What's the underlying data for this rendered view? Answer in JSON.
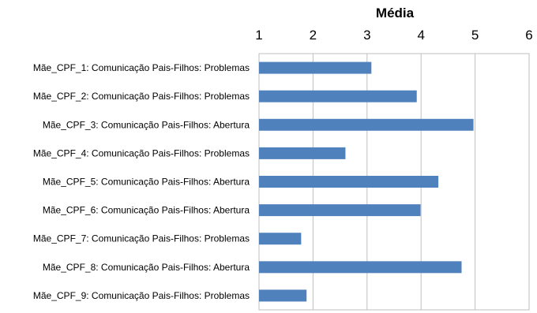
{
  "chart_data": {
    "type": "bar",
    "orientation": "horizontal",
    "title": "Média",
    "xlabel": "Média",
    "xaxis_position": "top",
    "xlim": [
      1,
      6
    ],
    "xticks": [
      "1",
      "2",
      "3",
      "4",
      "5",
      "6"
    ],
    "grid": true,
    "bar_color": "#4F81BD",
    "categories": [
      "Mãe_CPF_1: Comunicação Pais-Filhos: Problemas",
      "Mãe_CPF_2: Comunicação Pais-Filhos: Problemas",
      "Mãe_CPF_3: Comunicação Pais-Filhos: Abertura",
      "Mãe_CPF_4: Comunicação Pais-Filhos: Problemas",
      "Mãe_CPF_5: Comunicação Pais-Filhos: Abertura",
      "Mãe_CPF_6: Comunicação Pais-Filhos: Abertura",
      "Mãe_CPF_7: Comunicação Pais-Filhos: Problemas",
      "Mãe_CPF_8: Comunicação Pais-Filhos: Abertura",
      "Mãe_CPF_9: Comunicação Pais-Filhos: Problemas"
    ],
    "values": [
      3.08,
      3.92,
      4.97,
      2.6,
      4.32,
      3.99,
      1.78,
      4.75,
      1.88
    ]
  }
}
